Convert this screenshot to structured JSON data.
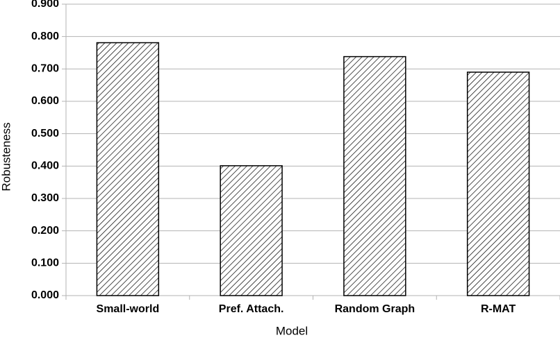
{
  "chart_data": {
    "type": "bar",
    "categories": [
      "Small-world",
      "Pref. Attach.",
      "Random Graph",
      "R-MAT"
    ],
    "values": [
      0.781,
      0.401,
      0.738,
      0.69
    ],
    "color": "#000000",
    "x_label": "Model",
    "y_label": "Robusteness",
    "ylim": [
      0,
      0.9
    ],
    "yticks": [
      {
        "value": 0,
        "label": "0.000"
      },
      {
        "value": 0.1,
        "label": "0.100"
      },
      {
        "value": 0.2,
        "label": "0.200"
      },
      {
        "value": 0.3,
        "label": "0.300"
      },
      {
        "value": 0.4,
        "label": "0.400"
      },
      {
        "value": 0.5,
        "label": "0.500"
      },
      {
        "value": 0.6,
        "label": "0.600"
      },
      {
        "value": 0.7,
        "label": "0.700"
      },
      {
        "value": 0.8,
        "label": "0.800"
      },
      {
        "value": 0.9,
        "label": "0.900"
      }
    ],
    "grid": true
  }
}
